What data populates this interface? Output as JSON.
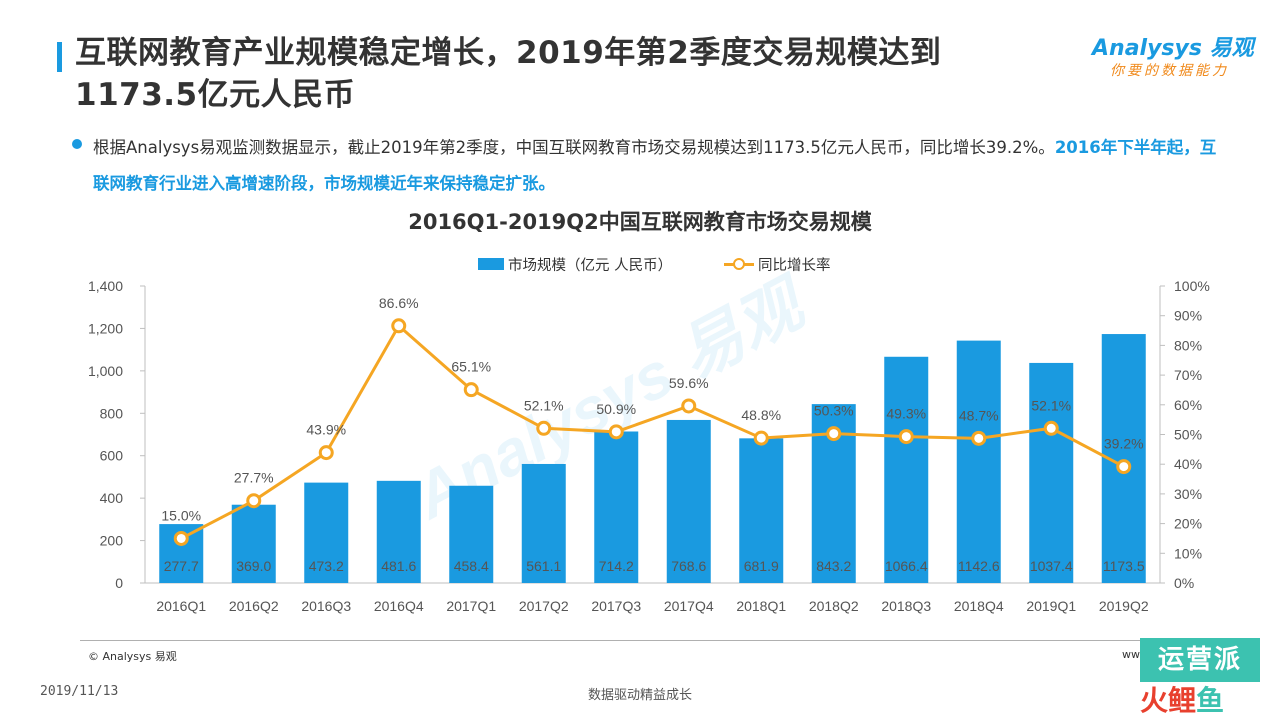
{
  "header": {
    "title_line1": "互联网教育产业规模稳定增长，2019年第2季度交易规模达到",
    "title_line2": "1173.5亿元人民币"
  },
  "logo": {
    "main": "Analysys 易观",
    "sub": "你要的数据能力"
  },
  "summary": {
    "text": "根据Analysys易观监测数据显示，截止2019年第2季度，中国互联网教育市场交易规模达到1173.5亿元人民币，同比增长39.2%。",
    "highlight": "2016年下半年起，互联网教育行业进入高增速阶段，市场规模近年来保持稳定扩张。"
  },
  "chart_data": {
    "type": "bar",
    "title": "2016Q1-2019Q2中国互联网教育市场交易规模",
    "categories": [
      "2016Q1",
      "2016Q2",
      "2016Q3",
      "2016Q4",
      "2017Q1",
      "2017Q2",
      "2017Q3",
      "2017Q4",
      "2018Q1",
      "2018Q2",
      "2018Q3",
      "2018Q4",
      "2019Q1",
      "2019Q2"
    ],
    "series": [
      {
        "name": "市场规模（亿元 人民币）",
        "kind": "bar",
        "axis": "left",
        "color": "#1a9ae0",
        "values": [
          277.7,
          369.0,
          473.2,
          481.6,
          458.4,
          561.1,
          714.2,
          768.6,
          681.9,
          843.2,
          1066.4,
          1142.6,
          1037.4,
          1173.5
        ],
        "labels": [
          "277.7",
          "369.0",
          "473.2",
          "481.6",
          "458.4",
          "561.1",
          "714.2",
          "768.6",
          "681.9",
          "843.2",
          "1066.4",
          "1142.6",
          "1037.4",
          "1173.5"
        ]
      },
      {
        "name": "同比增长率",
        "kind": "line",
        "axis": "right",
        "color": "#f5a623",
        "values": [
          15.0,
          27.7,
          43.9,
          86.6,
          65.1,
          52.1,
          50.9,
          59.6,
          48.8,
          50.3,
          49.3,
          48.7,
          52.1,
          39.2
        ],
        "labels": [
          "15.0%",
          "27.7%",
          "43.9%",
          "86.6%",
          "65.1%",
          "52.1%",
          "50.9%",
          "59.6%",
          "48.8%",
          "50.3%",
          "49.3%",
          "48.7%",
          "52.1%",
          "39.2%"
        ]
      }
    ],
    "y_left": {
      "min": 0,
      "max": 1400,
      "ticks": [
        "0",
        "200",
        "400",
        "600",
        "800",
        "1,000",
        "1,200",
        "1,400"
      ]
    },
    "y_right": {
      "min": 0,
      "max": 100,
      "ticks": [
        "0%",
        "10%",
        "20%",
        "30%",
        "40%",
        "50%",
        "60%",
        "70%",
        "80%",
        "90%",
        "100%"
      ]
    },
    "legend_position": "top-center",
    "grid": false
  },
  "footer": {
    "copyright": "© Analysys 易观",
    "website": "ww",
    "date": "2019/11/13",
    "slogan": "数据驱动精益成长"
  },
  "corner_badge": {
    "top": "运营派",
    "bottom_chars": [
      "火",
      "鲤",
      "鱼"
    ]
  },
  "colors": {
    "accent": "#1a9ae0",
    "line": "#f5a623",
    "highlight_text": "#1a9ae0"
  }
}
